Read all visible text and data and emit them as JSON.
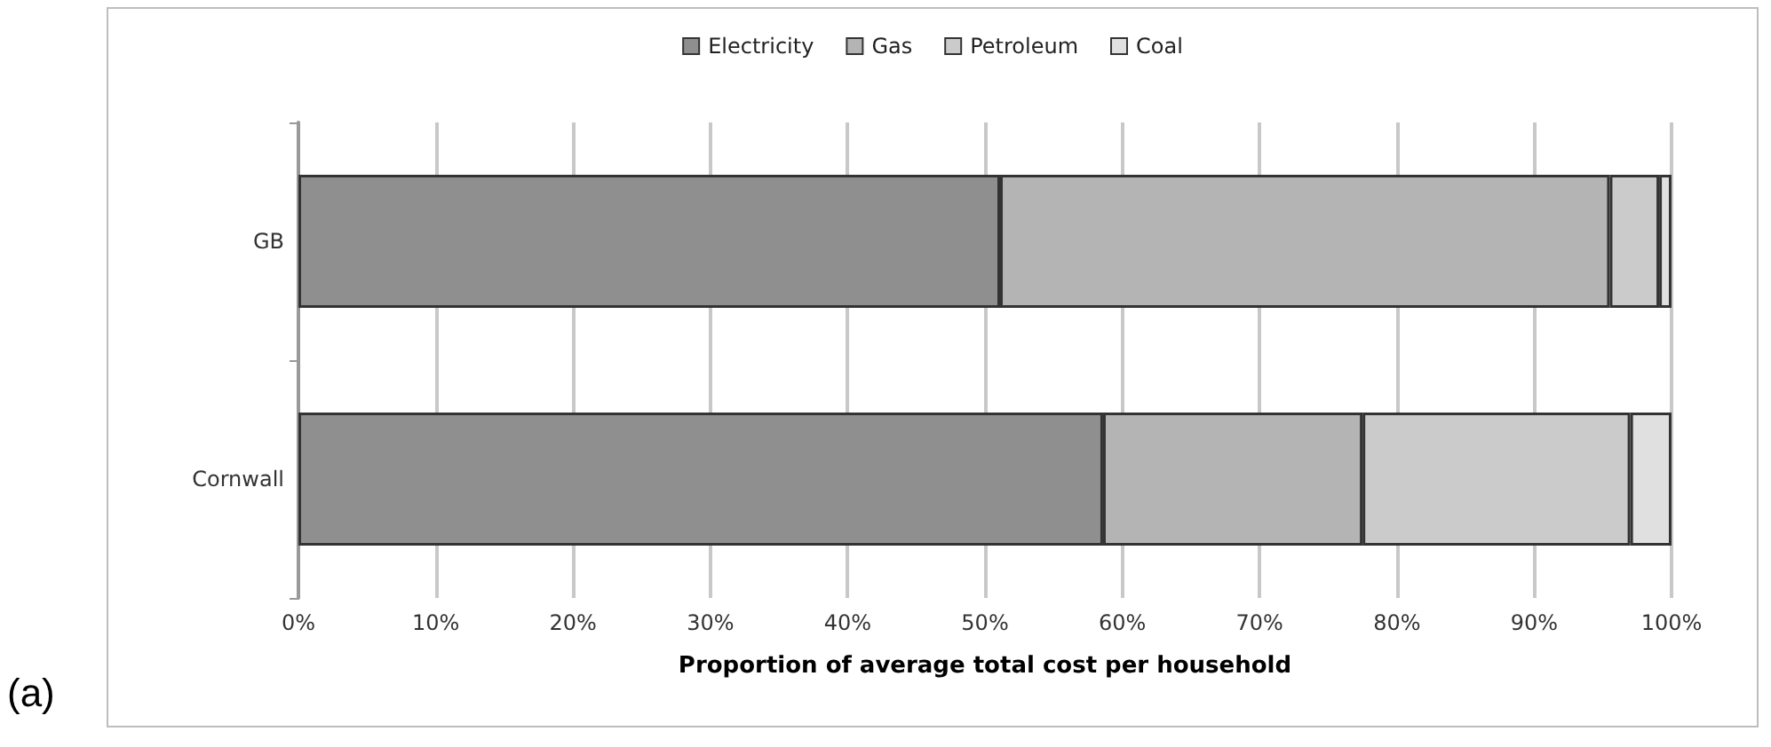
{
  "chart_data": {
    "type": "bar",
    "orientation": "horizontal",
    "stacked": true,
    "categories": [
      "GB",
      "Cornwall"
    ],
    "series": [
      {
        "name": "Electricity",
        "color": "#8f8f8f",
        "values": [
          51.1,
          58.6
        ]
      },
      {
        "name": "Gas",
        "color": "#b4b4b4",
        "values": [
          44.4,
          18.9
        ]
      },
      {
        "name": "Petroleum",
        "color": "#cbcbcb",
        "values": [
          3.6,
          19.5
        ]
      },
      {
        "name": "Coal",
        "color": "#e0e0e0",
        "values": [
          0.9,
          3.0
        ]
      }
    ],
    "xlabel": "Proportion of average total cost per household",
    "xlim": [
      0,
      100
    ],
    "xticks": [
      {
        "value": 0,
        "label": "0%"
      },
      {
        "value": 10,
        "label": "10%"
      },
      {
        "value": 20,
        "label": "20%"
      },
      {
        "value": 30,
        "label": "30%"
      },
      {
        "value": 40,
        "label": "40%"
      },
      {
        "value": 50,
        "label": "50%"
      },
      {
        "value": 60,
        "label": "60%"
      },
      {
        "value": 70,
        "label": "70%"
      },
      {
        "value": 80,
        "label": "80%"
      },
      {
        "value": 90,
        "label": "90%"
      },
      {
        "value": 100,
        "label": "100%"
      }
    ],
    "grid": "x",
    "legend": "top",
    "annotations": [
      "(a)"
    ]
  }
}
